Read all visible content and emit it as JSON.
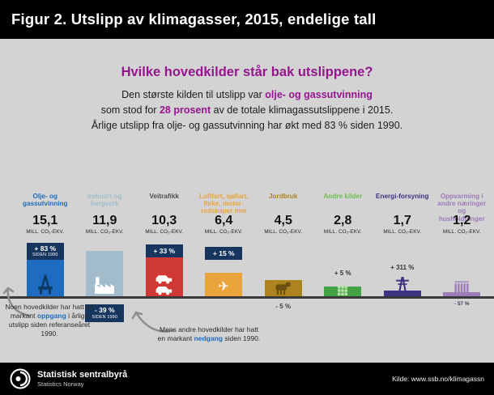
{
  "theme": {
    "accent_purple": "#96158f",
    "highlight_blue": "#1e6bbf",
    "badge_navy": "#16365f",
    "background_gray": "#d3d3d3"
  },
  "icons": {
    "airplane_glyph": "✈"
  },
  "header": {
    "title": "Figur 2. Utslipp av klimagasser, 2015, endelige tall"
  },
  "intro": {
    "heading": "Hvilke hovedkilder står bak utslippene?",
    "l1a": "Den største kilden til utslipp var ",
    "l1b": "olje- og gassutvinning",
    "l2a": "som stod for ",
    "l2b": "28 prosent",
    "l2c": " av de totale klimagassutslippene i 2015.",
    "l3": "Årlige utslipp fra olje- og gassutvinning har økt med 83 % siden 1990."
  },
  "chart_data": {
    "type": "bar",
    "title": "Utslipp av klimagasser, 2015, endelige tall",
    "unit": "MILL. CO₂-EKV.",
    "categories": [
      "Olje- og gassutvinning",
      "Industri og bergverk",
      "Veitrafikk",
      "Luftfart, sjøfart, fiske, motorredskaper mm",
      "Jordbruk",
      "Andre kilder",
      "Energiforsyning",
      "Oppvarming i andre næringer og husholdninger"
    ],
    "values": [
      15.1,
      11.9,
      10.3,
      6.4,
      4.5,
      2.8,
      1.7,
      1.2
    ],
    "change_since_1990_percent": [
      83,
      -39,
      33,
      15,
      -5,
      5,
      311,
      -57
    ],
    "baseline_year": "1990",
    "legend": "none",
    "grid": false
  },
  "columns": [
    {
      "label": "Olje- og gassutvinning",
      "value": "15,1",
      "change": "+ 83 %",
      "since": "SIDEN 1990",
      "color": "#1e6bbf",
      "label_color": "#1e6bbf",
      "badge_in_bar": true,
      "icon": "oil-platform-icon"
    },
    {
      "label": "Industri og bergverk",
      "value": "11,9",
      "change": "- 39 %",
      "since": "SIDEN 1990",
      "color": "#a2bccb",
      "label_color": "#a2bccb",
      "icon": "factory-icon"
    },
    {
      "label": "Veitrafikk",
      "value": "10,3",
      "change": "+ 33 %",
      "color": "#cf3834",
      "label_color": "#4d4d4d",
      "icon": "cars-icon"
    },
    {
      "label": "Luftfart, sjøfart, fiske, motor-redskaper mm",
      "value": "6,4",
      "change": "+ 15 %",
      "color": "#eaa43c",
      "label_color": "#eaa43c",
      "icon": "airplane-icon"
    },
    {
      "label": "Jordbruk",
      "value": "4,5",
      "change": "- 5 %",
      "color": "#ad831d",
      "label_color": "#ad831d",
      "icon": "cow-icon"
    },
    {
      "label": "Andre kilder",
      "value": "2,8",
      "change": "+ 5 %",
      "color": "#44a344",
      "label_color": "#6fbc4e",
      "icon": "grid-icon"
    },
    {
      "label": "Energi-forsyning",
      "value": "1,7",
      "change": "+ 311 %",
      "color": "#3c3383",
      "label_color": "#3c3383",
      "icon": "power-pylon-icon"
    },
    {
      "label": "Oppvarming i andre næringer og husholdninger",
      "value": "1,2",
      "change": "- 57 %",
      "color": "#9d7cba",
      "label_color": "#9d7cba",
      "icon": "radiator-icon"
    }
  ],
  "annotations": {
    "left": {
      "t1": "Noen hovedkilder har hatt en markant ",
      "hl": "oppgang",
      "t2": " i årlige utslipp siden referanseåret 1990."
    },
    "mid": {
      "t1": "Mens andre hovedkilder har hatt en markant ",
      "hl": "nedgang",
      "t2": " siden 1990."
    }
  },
  "footer": {
    "org_name": "Statistisk sentralbyrå",
    "org_name_en": "Statistics Norway",
    "source": "Kilde: www.ssb.no/klimagassn"
  }
}
